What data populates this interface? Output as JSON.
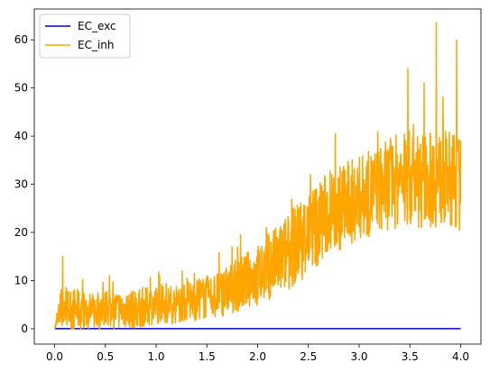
{
  "chart_data": {
    "type": "line",
    "title": "",
    "xlabel": "",
    "ylabel": "",
    "xlim": [
      -0.2,
      4.2
    ],
    "ylim": [
      -3.2,
      66.4
    ],
    "xticks": [
      0.0,
      0.5,
      1.0,
      1.5,
      2.0,
      2.5,
      3.0,
      3.5,
      4.0
    ],
    "xtick_labels": [
      "0.0",
      "0.5",
      "1.0",
      "1.5",
      "2.0",
      "2.5",
      "3.0",
      "3.5",
      "4.0"
    ],
    "yticks": [
      0,
      10,
      20,
      30,
      40,
      50,
      60
    ],
    "ytick_labels": [
      "0",
      "10",
      "20",
      "30",
      "40",
      "50",
      "60"
    ],
    "grid": false,
    "legend": {
      "position": "upper left",
      "entries": [
        "EC_exc",
        "EC_inh"
      ]
    },
    "series": [
      {
        "name": "EC_exc",
        "color": "#0000cd",
        "x": [
          0.0,
          4.0
        ],
        "values": [
          0.0,
          0.0
        ]
      },
      {
        "name": "EC_inh",
        "color": "#ffa500",
        "noisy": true,
        "x": [
          0.0,
          0.05,
          0.1,
          0.2,
          0.3,
          0.4,
          0.5,
          0.6,
          0.7,
          0.8,
          0.9,
          1.0,
          1.1,
          1.2,
          1.3,
          1.4,
          1.5,
          1.6,
          1.7,
          1.8,
          1.9,
          2.0,
          2.1,
          2.2,
          2.3,
          2.4,
          2.5,
          2.6,
          2.7,
          2.8,
          2.9,
          3.0,
          3.1,
          3.2,
          3.3,
          3.4,
          3.5,
          3.6,
          3.7,
          3.8,
          3.9,
          4.0
        ],
        "values": [
          0.0,
          3.0,
          4.0,
          4.0,
          3.5,
          3.5,
          4.0,
          4.0,
          4.0,
          4.0,
          4.5,
          5.0,
          5.0,
          5.0,
          5.5,
          6.0,
          6.5,
          7.0,
          8.0,
          9.0,
          10.0,
          11.0,
          13.0,
          14.0,
          16.0,
          18.0,
          20.0,
          22.0,
          24.0,
          25.0,
          26.0,
          27.0,
          28.0,
          29.0,
          30.0,
          31.0,
          31.0,
          31.0,
          31.0,
          31.0,
          31.0,
          30.0
        ],
        "spread": [
          0.0,
          4.0,
          4.5,
          4.5,
          4.0,
          4.0,
          4.0,
          4.0,
          4.0,
          4.0,
          4.0,
          4.0,
          4.0,
          4.0,
          4.0,
          4.5,
          4.5,
          5.0,
          5.0,
          5.5,
          6.0,
          6.5,
          7.0,
          7.5,
          8.0,
          8.5,
          9.0,
          9.0,
          9.0,
          9.0,
          9.0,
          9.0,
          9.0,
          9.0,
          9.5,
          10.0,
          10.0,
          10.0,
          10.0,
          10.0,
          10.0,
          10.0
        ],
        "peaks": [
          {
            "x": 0.08,
            "y": 15.0
          },
          {
            "x": 0.54,
            "y": 11.0
          },
          {
            "x": 1.83,
            "y": 19.5
          },
          {
            "x": 2.52,
            "y": 32.0
          },
          {
            "x": 3.48,
            "y": 54.0
          },
          {
            "x": 3.64,
            "y": 51.0
          },
          {
            "x": 3.76,
            "y": 63.5
          },
          {
            "x": 3.96,
            "y": 60.0
          }
        ]
      }
    ]
  }
}
